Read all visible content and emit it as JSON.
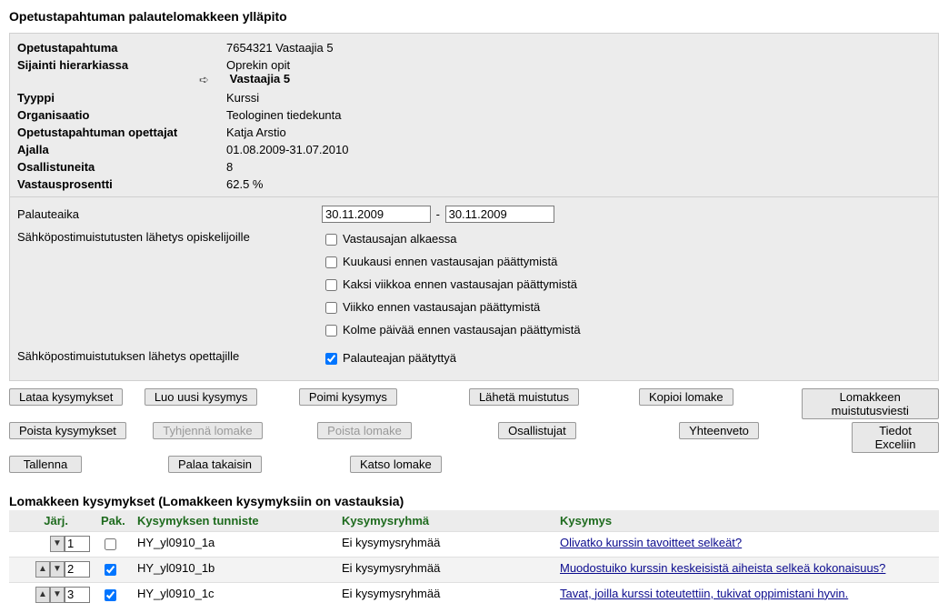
{
  "page_title": "Opetustapahtuman palautelomakkeen ylläpito",
  "info": {
    "opetustapahtuma_label": "Opetustapahtuma",
    "opetustapahtuma_value": "7654321 Vastaajia 5",
    "sijainti_label": "Sijainti hierarkiassa",
    "sijainti_line1": "Oprekin opit",
    "sijainti_line2": "Vastaajia 5",
    "tyyppi_label": "Tyyppi",
    "tyyppi_value": "Kurssi",
    "org_label": "Organisaatio",
    "org_value": "Teologinen tiedekunta",
    "opettajat_label": "Opetustapahtuman opettajat",
    "opettajat_value": "Katja Arstio",
    "ajalla_label": "Ajalla",
    "ajalla_value": "01.08.2009-31.07.2010",
    "osallistuneita_label": "Osallistuneita",
    "osallistuneita_value": "8",
    "vastausprosentti_label": "Vastausprosentti",
    "vastausprosentti_value": "62.5 %"
  },
  "form": {
    "palauteaika_label": "Palauteaika",
    "date_from": "30.11.2009",
    "date_to": "30.11.2009",
    "email_students_label": "Sähköpostimuistutusten lähetys opiskelijoille",
    "chk_start": "Vastausajan alkaessa",
    "chk_month": "Kuukausi ennen vastausajan päättymistä",
    "chk_two_weeks": "Kaksi viikkoa ennen vastausajan päättymistä",
    "chk_week": "Viikko ennen vastausajan päättymistä",
    "chk_three_days": "Kolme päivää ennen vastausajan päättymistä",
    "email_teachers_label": "Sähköpostimuistutuksen lähetys opettajille",
    "chk_after_end": "Palauteajan päätyttyä"
  },
  "buttons": {
    "lataa": "Lataa kysymykset",
    "luo": "Luo uusi kysymys",
    "poimi": "Poimi kysymys",
    "laheta": "Lähetä muistutus",
    "kopioi": "Kopioi lomake",
    "muistutus": "Lomakkeen muistutusviesti",
    "poista_k": "Poista kysymykset",
    "tyhjenna": "Tyhjennä lomake",
    "poista_l": "Poista lomake",
    "osallistujat": "Osallistujat",
    "yhteenveto": "Yhteenveto",
    "excel": "Tiedot Exceliin",
    "tallenna": "Tallenna",
    "palaa": "Palaa takaisin",
    "katso": "Katso lomake"
  },
  "questions": {
    "section_title": "Lomakkeen kysymykset (Lomakkeen kysymyksiin on vastauksia)",
    "header": {
      "jarj": "Järj.",
      "pak": "Pak.",
      "tunniste": "Kysymyksen tunniste",
      "ryhma": "Kysymysryhmä",
      "kysymys": "Kysymys"
    },
    "rows": [
      {
        "seq": "1",
        "pak": false,
        "arrows": "down",
        "id": "HY_yl0910_1a",
        "group": "Ei kysymysryhmää",
        "text": "Olivatko kurssin tavoitteet selkeät?"
      },
      {
        "seq": "2",
        "pak": true,
        "arrows": "both",
        "id": "HY_yl0910_1b",
        "group": "Ei kysymysryhmää",
        "text": "Muodostuiko kurssin keskeisistä aiheista selkeä kokonaisuus?"
      },
      {
        "seq": "3",
        "pak": true,
        "arrows": "both",
        "id": "HY_yl0910_1c",
        "group": "Ei kysymysryhmää",
        "text": "Tavat, joilla kurssi toteutettiin, tukivat oppimistani hyvin."
      }
    ]
  }
}
